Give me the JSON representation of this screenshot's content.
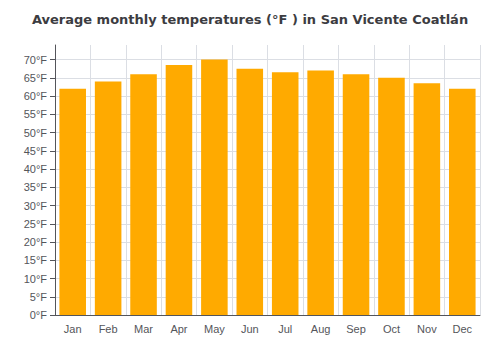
{
  "chart_data": {
    "type": "bar",
    "title": "Average monthly temperatures (°F ) in San Vicente Coatlán",
    "categories": [
      "Jan",
      "Feb",
      "Mar",
      "Apr",
      "May",
      "Jun",
      "Jul",
      "Aug",
      "Sep",
      "Oct",
      "Nov",
      "Dec"
    ],
    "values": [
      62,
      64,
      66,
      68.5,
      70,
      67.5,
      66.5,
      67,
      66,
      65,
      63.5,
      62
    ],
    "color": "#FFAA00",
    "ylim": [
      0,
      74
    ],
    "yticks": [
      {
        "value": 0,
        "label": "0°F"
      },
      {
        "value": 5,
        "label": "5°F"
      },
      {
        "value": 10,
        "label": "10°F"
      },
      {
        "value": 15,
        "label": "15°F"
      },
      {
        "value": 20,
        "label": "20°F"
      },
      {
        "value": 25,
        "label": "25°F"
      },
      {
        "value": 30,
        "label": "30°F"
      },
      {
        "value": 35,
        "label": "35°F"
      },
      {
        "value": 40,
        "label": "40°F"
      },
      {
        "value": 45,
        "label": "45°F"
      },
      {
        "value": 50,
        "label": "50°F"
      },
      {
        "value": 55,
        "label": "55°F"
      },
      {
        "value": 60,
        "label": "60°F"
      },
      {
        "value": 65,
        "label": "65°F"
      },
      {
        "value": 70,
        "label": "70°F"
      }
    ],
    "grid": true
  }
}
